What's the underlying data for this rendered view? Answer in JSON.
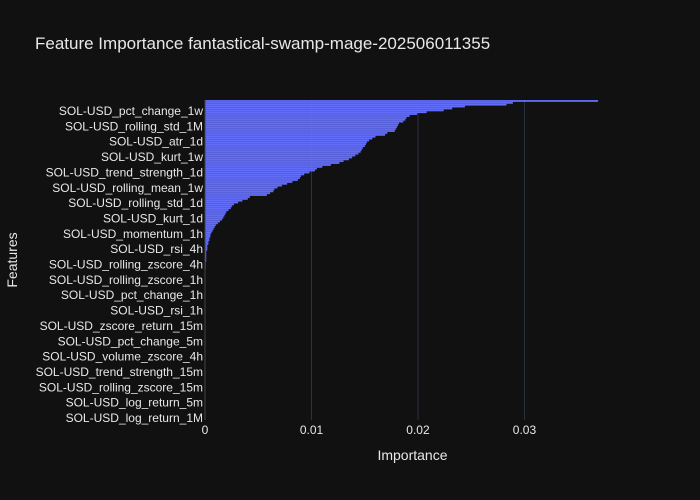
{
  "chart_data": {
    "type": "bar",
    "orientation": "horizontal",
    "title": "Feature Importance fantastical-swamp-mage-202506011355",
    "xlabel": "Importance",
    "ylabel": "Features",
    "xlim": [
      0,
      0.0385
    ],
    "xticks": [
      0,
      0.01,
      0.02,
      0.03
    ],
    "xtick_labels": [
      "0",
      "0.01",
      "0.02",
      "0.03"
    ],
    "grid": true,
    "bar_color": "#636efa",
    "background_color": "#111111",
    "labeled_categories": [
      "SOL-USD_pct_change_1w",
      "SOL-USD_rolling_std_1M",
      "SOL-USD_atr_1d",
      "SOL-USD_kurt_1w",
      "SOL-USD_trend_strength_1d",
      "SOL-USD_rolling_mean_1w",
      "SOL-USD_rolling_std_1d",
      "SOL-USD_kurt_1d",
      "SOL-USD_momentum_1h",
      "SOL-USD_rsi_4h",
      "SOL-USD_rolling_zscore_4h",
      "SOL-USD_rolling_zscore_1h",
      "SOL-USD_pct_change_1h",
      "SOL-USD_rsi_1h",
      "SOL-USD_zscore_return_15m",
      "SOL-USD_pct_change_5m",
      "SOL-USD_volume_zscore_4h",
      "SOL-USD_trend_strength_15m",
      "SOL-USD_rolling_zscore_15m",
      "SOL-USD_log_return_5m",
      "SOL-USD_log_return_1M"
    ],
    "values_top_to_bottom": [
      0.0369,
      0.0289,
      0.0283,
      0.0244,
      0.0232,
      0.0224,
      0.0208,
      0.0199,
      0.0192,
      0.0189,
      0.0188,
      0.0186,
      0.0182,
      0.0181,
      0.018,
      0.0179,
      0.0178,
      0.0171,
      0.0169,
      0.016,
      0.0157,
      0.0154,
      0.0152,
      0.0151,
      0.015,
      0.0148,
      0.0147,
      0.0146,
      0.0144,
      0.0141,
      0.0138,
      0.0135,
      0.013,
      0.0126,
      0.0118,
      0.011,
      0.0105,
      0.0103,
      0.0098,
      0.0093,
      0.009,
      0.0089,
      0.0087,
      0.0082,
      0.0077,
      0.0072,
      0.0068,
      0.0065,
      0.0064,
      0.0061,
      0.0058,
      0.0042,
      0.004,
      0.0035,
      0.0031,
      0.0027,
      0.0025,
      0.0024,
      0.0022,
      0.002,
      0.0019,
      0.0018,
      0.0017,
      0.0016,
      0.0014,
      0.0012,
      0.001,
      0.0009,
      0.0008,
      0.0007,
      0.0006,
      0.0005,
      0.0005,
      0.0004,
      0.0004,
      0.0003,
      0.0003,
      0.0002,
      0.0002,
      0.0002,
      0.0001,
      0.0001,
      0.0001,
      0.0001,
      0.0001,
      0.0001,
      5e-05,
      5e-05,
      5e-05,
      5e-05,
      3e-05,
      3e-05,
      3e-05,
      2e-05,
      2e-05,
      2e-05,
      1e-05,
      1e-05,
      1e-05,
      1e-05,
      0.0,
      0.0,
      0.0,
      0.0,
      0.0,
      0.0,
      0.0,
      0.0,
      0.0,
      0.0,
      0.0,
      0.0,
      0.0,
      0.0,
      0.0,
      0.0,
      0.0,
      0.0,
      0.0,
      0.0,
      0.0,
      0.0,
      0.0,
      0.0,
      0.0,
      0.0,
      0.0,
      0.0,
      0.0,
      0.0,
      0.0,
      0.0,
      0.0,
      0.0,
      0.0,
      0.0,
      0.0,
      0.0,
      0.0,
      0.0,
      0.0,
      0.0,
      0.0,
      0.0,
      0.0,
      0.0,
      0.0,
      0.0,
      0.0,
      0.0,
      0.0,
      0.0,
      0.0,
      0.0,
      0.0,
      0.0,
      0.0,
      0.0,
      0.0,
      0.0,
      0.0,
      0.0,
      0.0,
      0.0,
      0.0,
      0.0,
      0.0,
      0.0,
      0.0,
      0.0
    ]
  }
}
